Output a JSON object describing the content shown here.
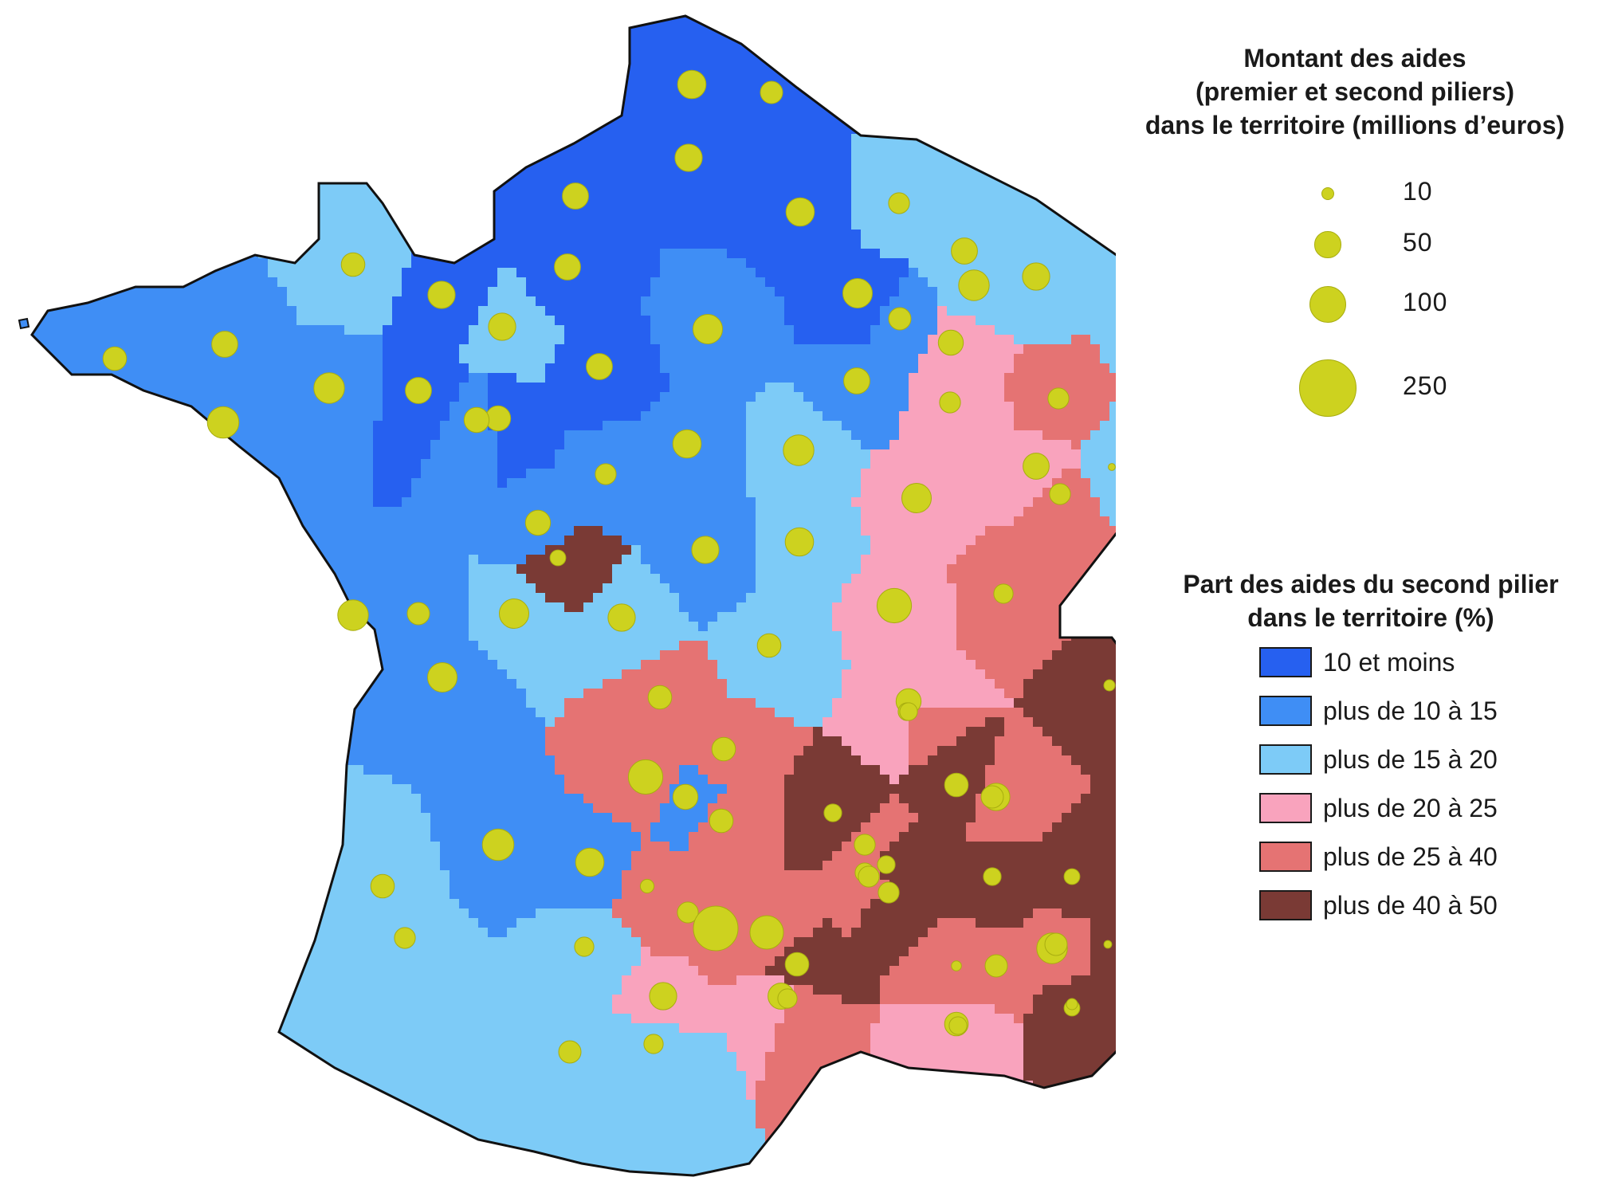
{
  "legend_size": {
    "title_line1": "Montant des aides",
    "title_line2": "(premier et second piliers)",
    "title_line3": "dans le territoire (millions d’euros)",
    "items": [
      {
        "label": "10",
        "value": 10
      },
      {
        "label": "50",
        "value": 50
      },
      {
        "label": "100",
        "value": 100
      },
      {
        "label": "250",
        "value": 250
      }
    ],
    "circle_color": "#cdd21f"
  },
  "legend_classes": {
    "title_line1": "Part des aides du second pilier",
    "title_line2": "dans le territoire (%)",
    "items": [
      {
        "label": "10 et moins",
        "color": "#2660f0"
      },
      {
        "label": "plus de 10 à 15",
        "color": "#3f8ef5"
      },
      {
        "label": "plus de 15 à 20",
        "color": "#7dcbf7"
      },
      {
        "label": "plus de 20 à 25",
        "color": "#f9a3bd"
      },
      {
        "label": "plus de 25 à 40",
        "color": "#e57373"
      },
      {
        "label": "plus de 40 à 50",
        "color": "#7a3a35"
      }
    ]
  },
  "territories": [
    {
      "class": 0,
      "aid": 65
    },
    {
      "class": 0,
      "aid": 40
    },
    {
      "class": 0,
      "aid": 60
    },
    {
      "class": 0,
      "aid": 55
    },
    {
      "class": 0,
      "aid": 65
    },
    {
      "class": 0,
      "aid": 55
    },
    {
      "class": 0,
      "aid": 70
    },
    {
      "class": 0,
      "aid": 60
    },
    {
      "class": 0,
      "aid": 55
    },
    {
      "class": 0,
      "aid": 55
    },
    {
      "class": 0,
      "aid": 50
    },
    {
      "class": 1,
      "aid": 45
    },
    {
      "class": 1,
      "aid": 55
    },
    {
      "class": 1,
      "aid": 75
    },
    {
      "class": 1,
      "aid": 70
    },
    {
      "class": 1,
      "aid": 55
    },
    {
      "class": 1,
      "aid": 80
    },
    {
      "class": 1,
      "aid": 50
    },
    {
      "class": 1,
      "aid": 65
    },
    {
      "class": 1,
      "aid": 35
    },
    {
      "class": 1,
      "aid": 50
    },
    {
      "class": 1,
      "aid": 60
    },
    {
      "class": 1,
      "aid": 40
    },
    {
      "class": 1,
      "aid": 75
    },
    {
      "class": 1,
      "aid": 40
    },
    {
      "class": 1,
      "aid": 70
    },
    {
      "class": 1,
      "aid": 80
    },
    {
      "class": 1,
      "aid": 65
    },
    {
      "class": 1,
      "aid": 50
    },
    {
      "class": 2,
      "aid": 45
    },
    {
      "class": 2,
      "aid": 60
    },
    {
      "class": 2,
      "aid": 45
    },
    {
      "class": 2,
      "aid": 35
    },
    {
      "class": 2,
      "aid": 55
    },
    {
      "class": 2,
      "aid": 60
    },
    {
      "class": 2,
      "aid": 75
    },
    {
      "class": 2,
      "aid": 65
    },
    {
      "class": 2,
      "aid": 45
    },
    {
      "class": 2,
      "aid": 60
    },
    {
      "class": 2,
      "aid": 75
    },
    {
      "class": 2,
      "aid": 50
    },
    {
      "class": 2,
      "aid": 25
    },
    {
      "class": 2,
      "aid": 4
    },
    {
      "class": 2,
      "aid": 70
    },
    {
      "class": 2,
      "aid": 35
    },
    {
      "class": 2,
      "aid": 30
    },
    {
      "class": 2,
      "aid": 40
    },
    {
      "class": 2,
      "aid": 30
    },
    {
      "class": 3,
      "aid": 50
    },
    {
      "class": 3,
      "aid": 35
    },
    {
      "class": 3,
      "aid": 70
    },
    {
      "class": 3,
      "aid": 95
    },
    {
      "class": 3,
      "aid": 55
    },
    {
      "class": 3,
      "aid": 50
    },
    {
      "class": 3,
      "aid": 25
    },
    {
      "class": 3,
      "aid": 55
    },
    {
      "class": 3,
      "aid": 60
    },
    {
      "class": 3,
      "aid": 45
    },
    {
      "class": 3,
      "aid": 25
    },
    {
      "class": 4,
      "aid": 35
    },
    {
      "class": 4,
      "aid": 35
    },
    {
      "class": 4,
      "aid": 30
    },
    {
      "class": 4,
      "aid": 25
    },
    {
      "class": 4,
      "aid": 60
    },
    {
      "class": 4,
      "aid": 75
    },
    {
      "class": 4,
      "aid": 45
    },
    {
      "class": 4,
      "aid": 45
    },
    {
      "class": 4,
      "aid": 95
    },
    {
      "class": 4,
      "aid": 45
    },
    {
      "class": 4,
      "aid": 35
    },
    {
      "class": 4,
      "aid": 30
    },
    {
      "class": 4,
      "aid": 35
    },
    {
      "class": 4,
      "aid": 15
    },
    {
      "class": 4,
      "aid": 30
    },
    {
      "class": 4,
      "aid": 8
    },
    {
      "class": 4,
      "aid": 90
    },
    {
      "class": 4,
      "aid": 40
    },
    {
      "class": 4,
      "aid": 35
    },
    {
      "class": 4,
      "aid": 40
    },
    {
      "class": 4,
      "aid": 40
    },
    {
      "class": 4,
      "aid": 160
    },
    {
      "class": 5,
      "aid": 25
    },
    {
      "class": 5,
      "aid": 25
    },
    {
      "class": 5,
      "aid": 35
    },
    {
      "class": 5,
      "aid": 20
    },
    {
      "class": 5,
      "aid": 45
    },
    {
      "class": 5,
      "aid": 25
    },
    {
      "class": 5,
      "aid": 45
    },
    {
      "class": 5,
      "aid": 20
    },
    {
      "class": 5,
      "aid": 10
    },
    {
      "class": 5,
      "aid": 30
    },
    {
      "class": 5,
      "aid": 10
    },
    {
      "class": 5,
      "aid": 5
    },
    {
      "class": 5,
      "aid": 20
    }
  ]
}
